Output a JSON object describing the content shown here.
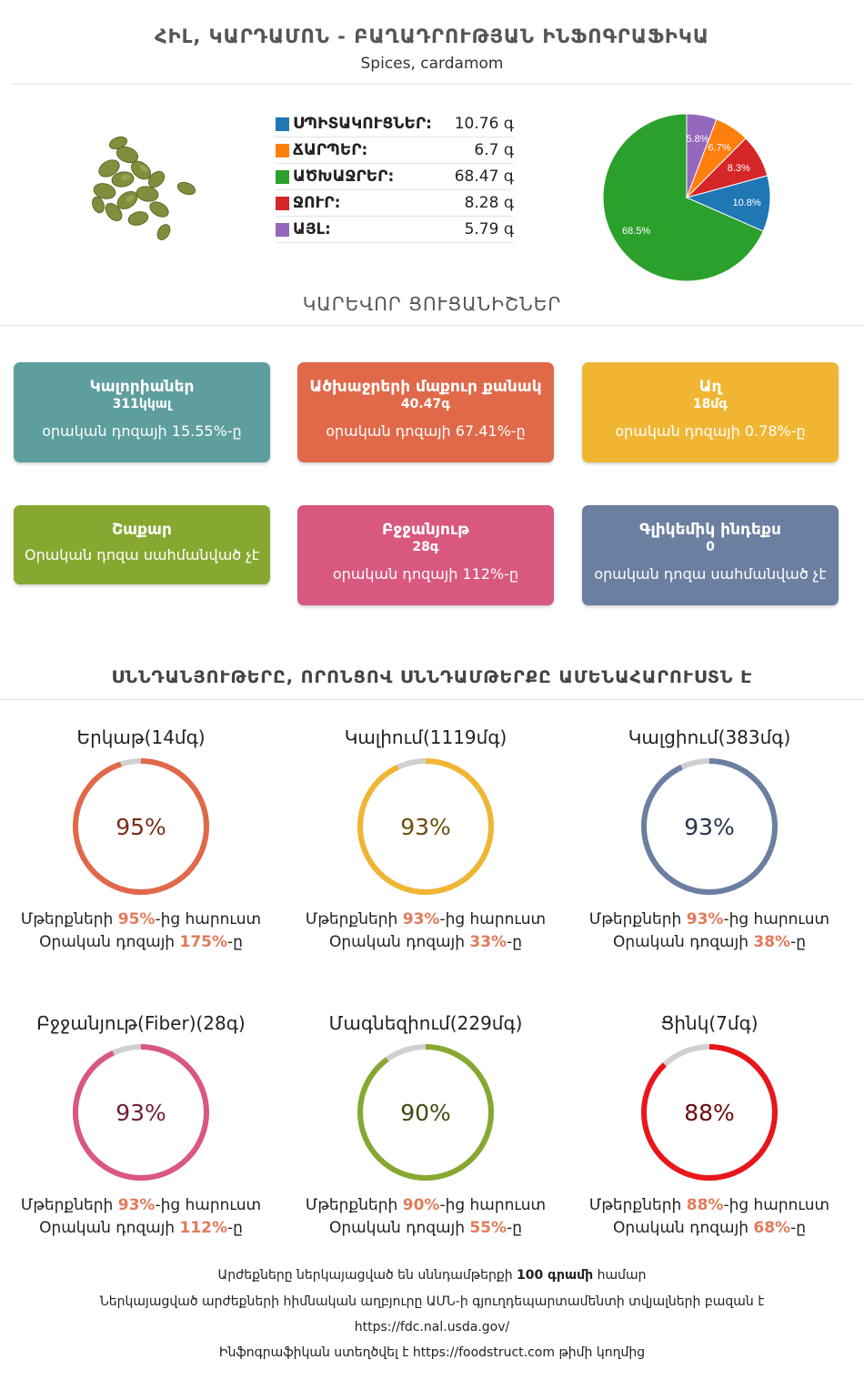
{
  "header": {
    "title": "ՀԻԼ, ԿԱՐԴԱՄՈՆ - ԲԱՂԱԴՐՈՒԹՅԱՆ ԻՆՖՈԳՐԱՖԻԿԱ",
    "subtitle": "Spices, cardamom"
  },
  "composition": {
    "items": [
      {
        "label": "ՍՊԻՏԱԿՈՒՑՆԵՐ:",
        "value": "10.76 գ",
        "color": "#1f77b4"
      },
      {
        "label": "ՃԱՐՊԵՐ:",
        "value": "6.7 գ",
        "color": "#ff7f0e"
      },
      {
        "label": "ԱԾԽԱՋՐԵՐ:",
        "value": "68.47 գ",
        "color": "#2ca02c"
      },
      {
        "label": "ՋՈՒՐ:",
        "value": "8.28 գ",
        "color": "#d62728"
      },
      {
        "label": "ԱՅԼ:",
        "value": "5.79 գ",
        "color": "#9467bd"
      }
    ]
  },
  "chart_data": {
    "type": "pie",
    "slices": [
      {
        "label": "68.5%",
        "value": 68.5,
        "color": "#2ca02c"
      },
      {
        "label": "10.8%",
        "value": 10.8,
        "color": "#1f77b4"
      },
      {
        "label": "8.3%",
        "value": 8.3,
        "color": "#d62728"
      },
      {
        "label": "6.7%",
        "value": 6.7,
        "color": "#ff7f0e"
      },
      {
        "label": "5.8%",
        "value": 5.8,
        "color": "#9467bd"
      }
    ]
  },
  "key_facts": {
    "heading": "ԿԱՐԵՎՈՐ ՑՈՒՑԱՆԻՇՆԵՐ",
    "cards": [
      {
        "title": "Կալորիաներ",
        "value": "311կկալ",
        "sub": "օրական դոզայի 15.55%-ը",
        "color": "#5e9e9e"
      },
      {
        "title": "Ածխաջրերի մաքուր քանակ",
        "value": "40.47գ",
        "sub": "օրական դոզայի 67.41%-ը",
        "color": "#e0694a"
      },
      {
        "title": "Աղ",
        "value": "18մգ",
        "sub": "օրական դոզայի 0.78%-ը",
        "color": "#f0b633"
      },
      {
        "title": "Շաքար",
        "value": "",
        "sub": "Օրական դոզա սահմանված չէ",
        "color": "#87a830"
      },
      {
        "title": "Բջջանյութ",
        "value": "28գ",
        "sub": "օրական դոզայի 112%-ը",
        "color": "#d9587f"
      },
      {
        "title": "Գլիկեմիկ ինդեքս",
        "value": "0",
        "sub": "օրական դոզա սահմանված չէ",
        "color": "#6b7fa1"
      }
    ]
  },
  "nutrients": {
    "heading": "ՍՆՆԴԱՆՅՈՒԹԵՐԸ, ՈՐՈՆՑՈՎ ՍՆՆԴԱՄԹԵՐՔԸ ԱՄԵՆԱՀԱՐՈՒՍՏՆ Է",
    "items": [
      {
        "title": "Երկաթ(14մգ)",
        "pct": 95,
        "pct_label": "95%",
        "color": "#e0694a",
        "text_color": "#7a2e1a",
        "l1a": "Մթերքների ",
        "l1b": "95%",
        "l1c": "-ից հարուստ",
        "l2a": "Օրական դոզայի ",
        "l2b": "175%",
        "l2c": "-ը"
      },
      {
        "title": "Կալիում(1119մգ)",
        "pct": 93,
        "pct_label": "93%",
        "color": "#f0b633",
        "text_color": "#6b4e0c",
        "l1a": "Մթերքների ",
        "l1b": "93%",
        "l1c": "-ից հարուստ",
        "l2a": "Օրական դոզայի ",
        "l2b": "33%",
        "l2c": "-ը"
      },
      {
        "title": "Կալցիում(383մգ)",
        "pct": 93,
        "pct_label": "93%",
        "color": "#6b7fa1",
        "text_color": "#26334d",
        "l1a": "Մթերքների ",
        "l1b": "93%",
        "l1c": "-ից հարուստ",
        "l2a": "Օրական դոզայի ",
        "l2b": "38%",
        "l2c": "-ը"
      },
      {
        "title": "Բջջանյութ(Fiber)(28գ)",
        "pct": 93,
        "pct_label": "93%",
        "color": "#d9587f",
        "text_color": "#6e1f36",
        "l1a": "Մթերքների ",
        "l1b": "93%",
        "l1c": "-ից հարուստ",
        "l2a": "Օրական դոզայի ",
        "l2b": "112%",
        "l2c": "-ը"
      },
      {
        "title": "Մագնեզիում(229մգ)",
        "pct": 90,
        "pct_label": "90%",
        "color": "#87a830",
        "text_color": "#3b4c10",
        "l1a": "Մթերքների ",
        "l1b": "90%",
        "l1c": "-ից հարուստ",
        "l2a": "Օրական դոզայի ",
        "l2b": "55%",
        "l2c": "-ը"
      },
      {
        "title": "Ցինկ(7մգ)",
        "pct": 88,
        "pct_label": "88%",
        "color": "#e8161b",
        "text_color": "#6a0a0c",
        "l1a": "Մթերքների ",
        "l1b": "88%",
        "l1c": "-ից հարուստ",
        "l2a": "Օրական դոզայի ",
        "l2b": "68%",
        "l2c": "-ը"
      }
    ]
  },
  "footer": {
    "line1a": "Արժեքները ներկայացված են սննդամթերքի ",
    "line1b": "100 գրամի",
    "line1c": " համար",
    "line2": "Ներկայացված արժեքների հիմնական աղբյուրը ԱՄՆ-ի գյուղդեպարտամենտի տվյալների բազան է",
    "line3": "https://fdc.nal.usda.gov/",
    "line4": "Ինֆոգրաֆիկան ստեղծվել է https://foodstruct.com թիմի կողմից"
  }
}
